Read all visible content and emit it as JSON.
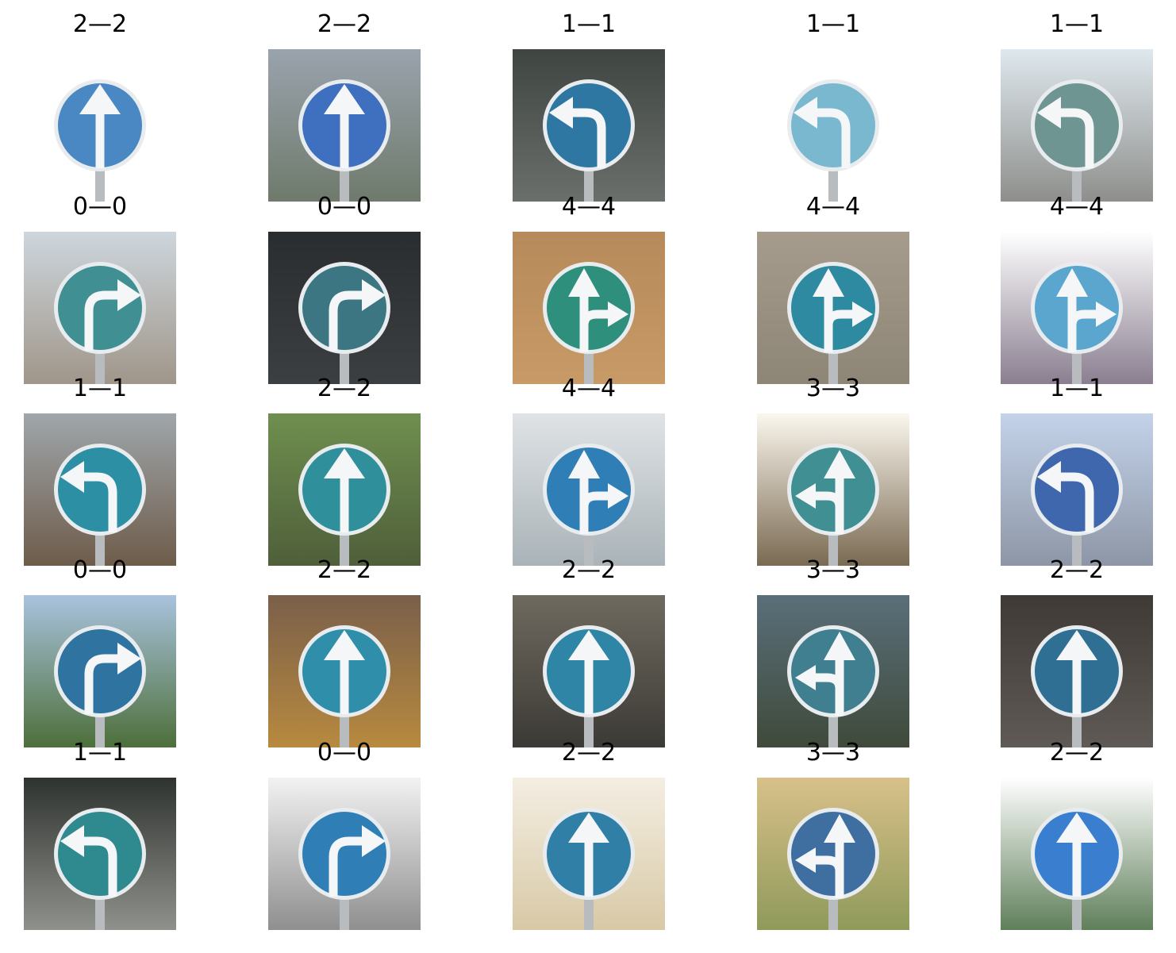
{
  "grid": {
    "cells": [
      {
        "label": "2—2",
        "sign": "arrow-up-sign",
        "bg": "#ffffff",
        "bg2": "#ffffff",
        "disc": "#4a88c4"
      },
      {
        "label": "2—2",
        "sign": "arrow-up-sign",
        "bg": "#9aa3ad",
        "bg2": "#6f7a6c",
        "disc": "#3f6fbf"
      },
      {
        "label": "1—1",
        "sign": "arrow-left-sign",
        "bg": "#3f4540",
        "bg2": "#6a6f6c",
        "disc": "#2f77a3"
      },
      {
        "label": "1—1",
        "sign": "arrow-left-sign",
        "bg": "#ffffff",
        "bg2": "#ffffff",
        "disc": "#7ab8cf"
      },
      {
        "label": "1—1",
        "sign": "arrow-left-sign",
        "bg": "#dfe8ee",
        "bg2": "#8e8f8c",
        "disc": "#6f9593"
      },
      {
        "label": "0—0",
        "sign": "arrow-right-sign",
        "bg": "#cdd6dd",
        "bg2": "#a0968a",
        "disc": "#3f8f93"
      },
      {
        "label": "0—0",
        "sign": "arrow-right-sign",
        "bg": "#2a2d2f",
        "bg2": "#3c3f41",
        "disc": "#3c7682"
      },
      {
        "label": "4—4",
        "sign": "arrow-up-right-sign",
        "bg": "#b68a5a",
        "bg2": "#c79a66",
        "disc": "#2f8f7d"
      },
      {
        "label": "4—4",
        "sign": "arrow-up-right-sign",
        "bg": "#a69c8d",
        "bg2": "#8d8575",
        "disc": "#2d8aa0"
      },
      {
        "label": "4—4",
        "sign": "arrow-up-right-sign",
        "bg": "#ffffff",
        "bg2": "#8a7f90",
        "disc": "#5aa6cf"
      },
      {
        "label": "1—1",
        "sign": "arrow-left-sign",
        "bg": "#9fa6ab",
        "bg2": "#6e5c4a",
        "disc": "#2d8fa3"
      },
      {
        "label": "2—2",
        "sign": "arrow-up-sign",
        "bg": "#6f8f4f",
        "bg2": "#4f5f3a",
        "disc": "#2f8f9a"
      },
      {
        "label": "4—4",
        "sign": "arrow-up-right-sign",
        "bg": "#dfe3e6",
        "bg2": "#aab3b8",
        "disc": "#2f7fb6"
      },
      {
        "label": "3—3",
        "sign": "arrow-up-left-sign",
        "bg": "#fbf7ee",
        "bg2": "#7a6a52",
        "disc": "#3f8f93"
      },
      {
        "label": "1—1",
        "sign": "arrow-left-sign",
        "bg": "#c4d3ea",
        "bg2": "#8d96a6",
        "disc": "#3f67ad"
      },
      {
        "label": "0—0",
        "sign": "arrow-right-sign",
        "bg": "#a9c3de",
        "bg2": "#4d6f3a",
        "disc": "#2f73a0"
      },
      {
        "label": "2—2",
        "sign": "arrow-up-sign",
        "bg": "#7a5f4a",
        "bg2": "#b88a3f",
        "disc": "#2f8faa"
      },
      {
        "label": "2—2",
        "sign": "arrow-up-sign",
        "bg": "#6f6a5f",
        "bg2": "#3c3a36",
        "disc": "#2f85a6"
      },
      {
        "label": "3—3",
        "sign": "arrow-up-left-sign",
        "bg": "#5a6f7a",
        "bg2": "#3f4a3a",
        "disc": "#3f7f8f"
      },
      {
        "label": "2—2",
        "sign": "arrow-up-sign",
        "bg": "#3f3a36",
        "bg2": "#5f5a55",
        "disc": "#2f6f93"
      },
      {
        "label": "1—1",
        "sign": "arrow-left-sign",
        "bg": "#2f332f",
        "bg2": "#8f918c",
        "disc": "#2f8a8f"
      },
      {
        "label": "0—0",
        "sign": "arrow-right-sign",
        "bg": "#f2f2f2",
        "bg2": "#8f8f8f",
        "disc": "#2f7fb6"
      },
      {
        "label": "2—2",
        "sign": "arrow-up-sign",
        "bg": "#f4eee2",
        "bg2": "#d8c9a6",
        "disc": "#2f7fa6"
      },
      {
        "label": "3—3",
        "sign": "arrow-up-left-sign",
        "bg": "#d8c08a",
        "bg2": "#8f9a5a",
        "disc": "#3f6fa0"
      },
      {
        "label": "2—2",
        "sign": "arrow-up-sign",
        "bg": "#ffffff",
        "bg2": "#5f7f5a",
        "disc": "#3a7fcf"
      }
    ]
  }
}
